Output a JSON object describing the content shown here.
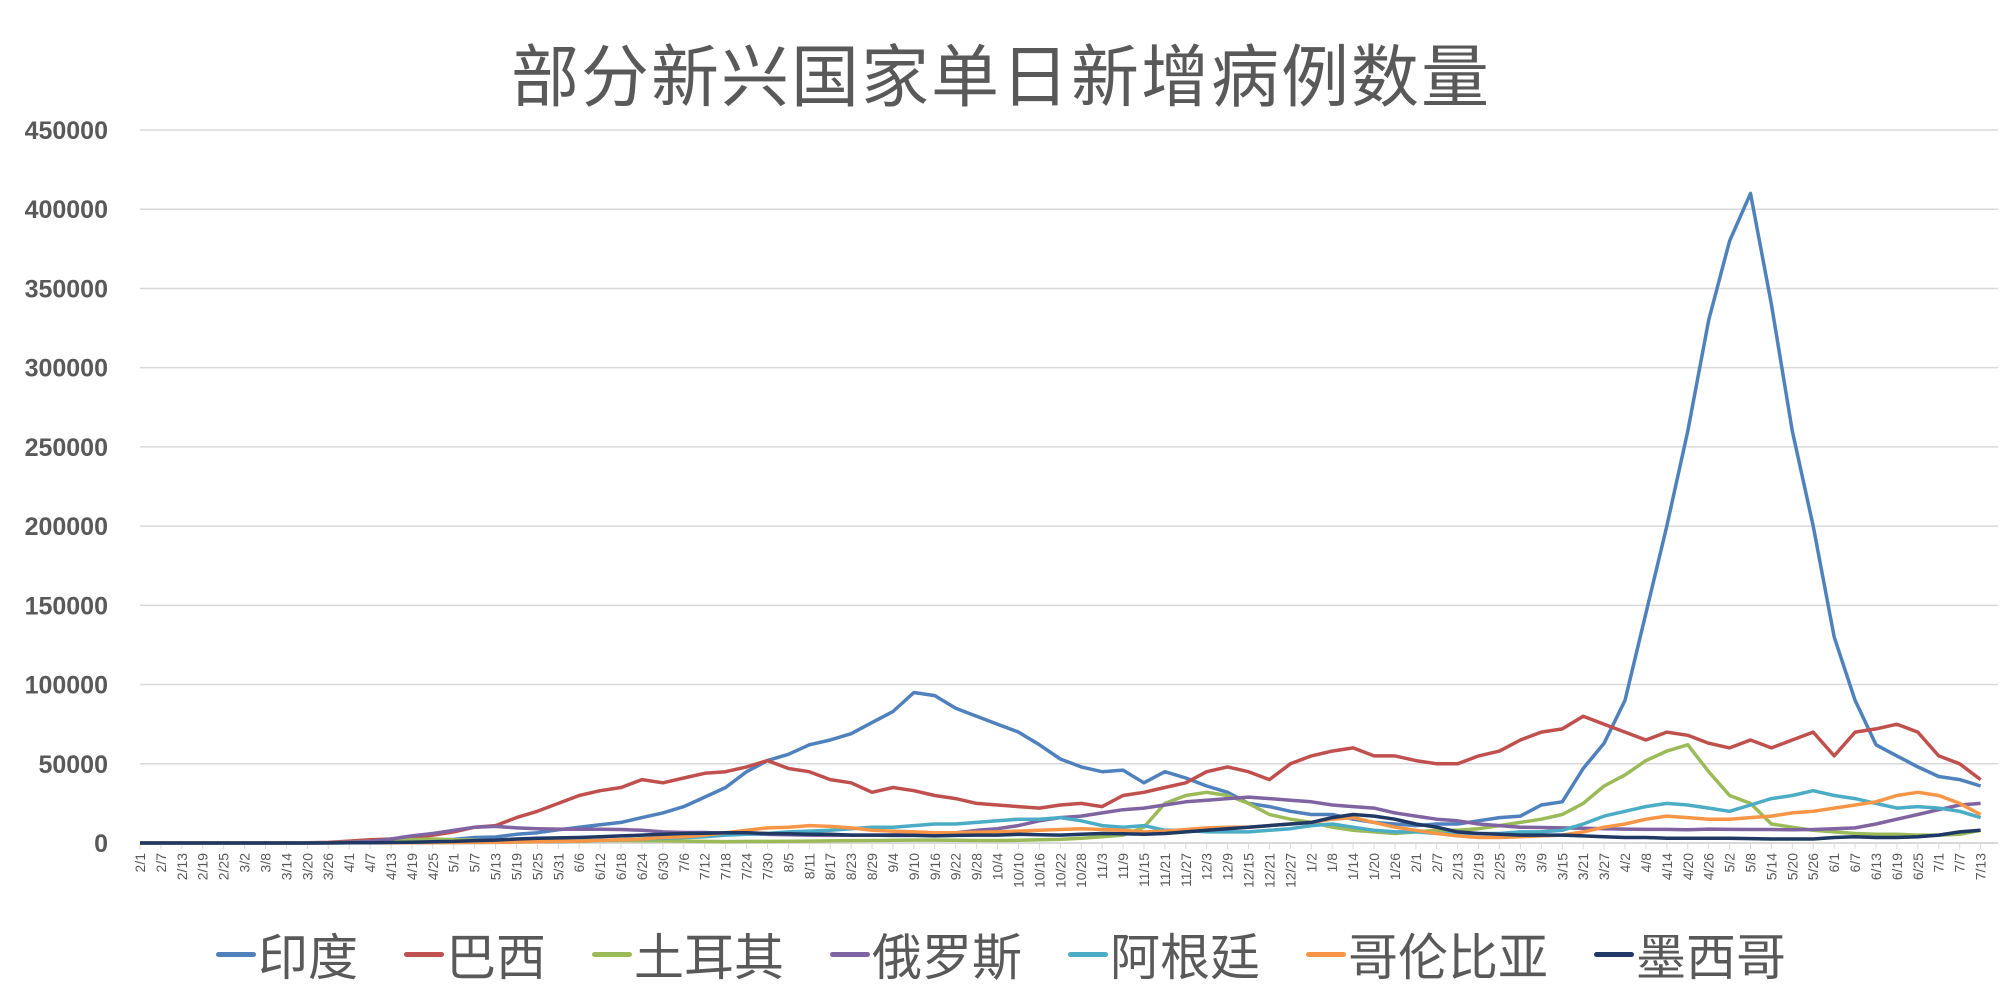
{
  "title": "部分新兴国家单日新增病例数量",
  "chart_data": {
    "type": "line",
    "title": "部分新兴国家单日新增病例数量",
    "xlabel": "",
    "ylabel": "",
    "ylim": [
      0,
      450000
    ],
    "yticks": [
      0,
      50000,
      100000,
      150000,
      200000,
      250000,
      300000,
      350000,
      400000,
      450000
    ],
    "grid": true,
    "legend_position": "bottom",
    "x": [
      "2/1",
      "2/7",
      "2/13",
      "2/19",
      "2/25",
      "3/2",
      "3/8",
      "3/14",
      "3/20",
      "3/26",
      "4/1",
      "4/7",
      "4/13",
      "4/19",
      "4/25",
      "5/1",
      "5/7",
      "5/13",
      "5/19",
      "5/25",
      "5/31",
      "6/6",
      "6/12",
      "6/18",
      "6/24",
      "6/30",
      "7/6",
      "7/12",
      "7/18",
      "7/24",
      "7/30",
      "8/5",
      "8/11",
      "8/17",
      "8/23",
      "8/29",
      "9/4",
      "9/10",
      "9/16",
      "9/22",
      "9/28",
      "10/4",
      "10/10",
      "10/16",
      "10/22",
      "10/28",
      "11/3",
      "11/9",
      "11/15",
      "11/21",
      "11/27",
      "12/3",
      "12/9",
      "12/15",
      "12/21",
      "12/27",
      "1/2",
      "1/8",
      "1/14",
      "1/20",
      "1/26",
      "2/1",
      "2/7",
      "2/13",
      "2/19",
      "2/25",
      "3/3",
      "3/9",
      "3/15",
      "3/21",
      "3/27",
      "4/2",
      "4/8",
      "4/14",
      "4/20",
      "4/26",
      "5/2",
      "5/8",
      "5/14",
      "5/20",
      "5/26",
      "6/1",
      "6/7",
      "6/13",
      "6/19",
      "6/25",
      "7/1",
      "7/7",
      "7/13"
    ],
    "series": [
      {
        "name": "印度",
        "color": "#4F81BD",
        "values": [
          0,
          0,
          0,
          0,
          0,
          0,
          0,
          0,
          100,
          100,
          400,
          800,
          1000,
          1500,
          1800,
          2300,
          3500,
          3800,
          5500,
          6500,
          8300,
          9900,
          11500,
          13000,
          16000,
          19000,
          23000,
          29000,
          35000,
          45000,
          52000,
          56000,
          62000,
          65000,
          69000,
          76000,
          83000,
          95000,
          93000,
          85000,
          80000,
          75000,
          70000,
          62000,
          53000,
          48000,
          45000,
          46000,
          38000,
          45000,
          41000,
          36000,
          32000,
          25000,
          23000,
          20000,
          18000,
          18000,
          15000,
          13000,
          12000,
          11000,
          12000,
          12000,
          14000,
          16000,
          17000,
          24000,
          26000,
          47000,
          63000,
          90000,
          145000,
          200000,
          260000,
          330000,
          380000,
          410000,
          340000,
          260000,
          200000,
          130000,
          90000,
          62000,
          55000,
          48000,
          42000,
          40000,
          36000
        ]
      },
      {
        "name": "巴西",
        "color": "#C0504D",
        "values": [
          0,
          0,
          0,
          0,
          0,
          0,
          0,
          0,
          100,
          400,
          1200,
          2000,
          2500,
          3500,
          5000,
          7000,
          10000,
          11000,
          16000,
          20000,
          25000,
          30000,
          33000,
          35000,
          40000,
          38000,
          41000,
          44000,
          45000,
          48000,
          52000,
          47000,
          45000,
          40000,
          38000,
          32000,
          35000,
          33000,
          30000,
          28000,
          25000,
          24000,
          23000,
          22000,
          24000,
          25000,
          23000,
          30000,
          32000,
          35000,
          38000,
          45000,
          48000,
          45000,
          40000,
          50000,
          55000,
          58000,
          60000,
          55000,
          55000,
          52000,
          50000,
          50000,
          55000,
          58000,
          65000,
          70000,
          72000,
          80000,
          75000,
          70000,
          65000,
          70000,
          68000,
          63000,
          60000,
          65000,
          60000,
          65000,
          70000,
          55000,
          70000,
          72000,
          75000,
          70000,
          55000,
          50000,
          40000
        ]
      },
      {
        "name": "土耳其",
        "color": "#9BBB59",
        "values": [
          0,
          0,
          0,
          0,
          0,
          0,
          0,
          0,
          0,
          100,
          500,
          1000,
          1500,
          2000,
          2500,
          2000,
          1800,
          1500,
          1400,
          1200,
          1000,
          1000,
          1500,
          1500,
          1400,
          1300,
          1200,
          1000,
          900,
          1000,
          1000,
          1100,
          1200,
          1300,
          1500,
          1600,
          1700,
          1800,
          1800,
          1700,
          1600,
          1600,
          1700,
          2000,
          2300,
          3000,
          4000,
          5000,
          10000,
          25000,
          30000,
          32000,
          30000,
          25000,
          18000,
          15000,
          13000,
          10000,
          8000,
          7000,
          6000,
          7000,
          8000,
          8000,
          9000,
          11000,
          13000,
          15000,
          18000,
          25000,
          36000,
          43000,
          52000,
          58000,
          62000,
          45000,
          30000,
          25000,
          12000,
          10000,
          8000,
          7000,
          6000,
          5500,
          5500,
          5000,
          5000,
          5500,
          8000
        ]
      },
      {
        "name": "俄罗斯",
        "color": "#8064A2",
        "values": [
          0,
          0,
          0,
          0,
          0,
          0,
          0,
          0,
          100,
          200,
          500,
          1000,
          2500,
          4500,
          6000,
          8000,
          10000,
          10500,
          9500,
          9000,
          8800,
          8700,
          8700,
          8500,
          8000,
          7000,
          6600,
          6600,
          6200,
          5800,
          5400,
          5200,
          5000,
          4800,
          5000,
          5000,
          5200,
          5600,
          6000,
          6400,
          8000,
          9000,
          11000,
          14000,
          16000,
          17000,
          19000,
          21000,
          22000,
          24000,
          26000,
          27000,
          28000,
          29000,
          28000,
          27000,
          26000,
          24000,
          23000,
          22000,
          19000,
          17000,
          15000,
          14000,
          12000,
          11000,
          10000,
          9800,
          9500,
          9300,
          9000,
          8800,
          8600,
          8600,
          8400,
          8800,
          8600,
          8500,
          8500,
          8300,
          8500,
          9000,
          9500,
          12000,
          15000,
          18000,
          21000,
          24000,
          25000
        ]
      },
      {
        "name": "阿根廷",
        "color": "#4BACC6",
        "values": [
          0,
          0,
          0,
          0,
          0,
          0,
          0,
          0,
          0,
          0,
          100,
          100,
          200,
          200,
          300,
          300,
          300,
          400,
          600,
          800,
          900,
          1200,
          1500,
          2000,
          2500,
          3000,
          3400,
          4000,
          5000,
          5500,
          6000,
          7000,
          7500,
          8000,
          9000,
          10000,
          10000,
          11000,
          12000,
          12000,
          13000,
          14000,
          15000,
          15000,
          16000,
          14000,
          11000,
          10000,
          11000,
          8000,
          8000,
          7000,
          7000,
          7000,
          8000,
          9000,
          11000,
          12000,
          10000,
          8000,
          7000,
          7000,
          6000,
          6000,
          6000,
          6000,
          7000,
          7000,
          8000,
          12000,
          17000,
          20000,
          23000,
          25000,
          24000,
          22000,
          20000,
          24000,
          28000,
          30000,
          33000,
          30000,
          28000,
          25000,
          22000,
          23000,
          22000,
          20000,
          16000
        ]
      },
      {
        "name": "哥伦比亚",
        "color": "#F79646",
        "values": [
          0,
          0,
          0,
          0,
          0,
          0,
          0,
          0,
          0,
          0,
          100,
          100,
          150,
          200,
          250,
          300,
          400,
          500,
          600,
          800,
          1000,
          1200,
          1600,
          2000,
          2500,
          3500,
          4000,
          5000,
          6500,
          8000,
          9500,
          10000,
          11000,
          10500,
          9500,
          8000,
          7500,
          7000,
          6500,
          6500,
          6800,
          7000,
          7500,
          8000,
          8500,
          9000,
          8500,
          8000,
          7000,
          7500,
          8500,
          9500,
          10000,
          10000,
          11000,
          12000,
          13000,
          15000,
          16000,
          13000,
          10000,
          8000,
          6000,
          4500,
          3500,
          3500,
          4000,
          4500,
          5000,
          7000,
          10000,
          12000,
          15000,
          17000,
          16000,
          15000,
          15000,
          16000,
          17000,
          19000,
          20000,
          22000,
          24000,
          26000,
          30000,
          32000,
          30000,
          25000,
          18000
        ]
      },
      {
        "name": "墨西哥",
        "color": "#1F3864",
        "values": [
          0,
          0,
          0,
          0,
          0,
          0,
          0,
          0,
          0,
          50,
          100,
          200,
          300,
          500,
          800,
          1000,
          1500,
          1800,
          2500,
          3000,
          3200,
          3500,
          4000,
          4500,
          5000,
          5500,
          6000,
          6200,
          6500,
          6500,
          6000,
          5800,
          5500,
          5500,
          5000,
          5000,
          4800,
          4800,
          4500,
          4800,
          5000,
          5000,
          5500,
          5200,
          5000,
          5500,
          6000,
          5800,
          5500,
          6000,
          7000,
          8000,
          9000,
          10000,
          11000,
          12000,
          13000,
          16000,
          18000,
          17000,
          15000,
          12000,
          10000,
          7000,
          6000,
          5500,
          5000,
          5000,
          5000,
          4500,
          4000,
          3500,
          3500,
          3000,
          3000,
          3000,
          3000,
          2800,
          2500,
          2500,
          2500,
          3500,
          4000,
          3500,
          3500,
          4000,
          5000,
          7000,
          8000
        ]
      }
    ]
  }
}
